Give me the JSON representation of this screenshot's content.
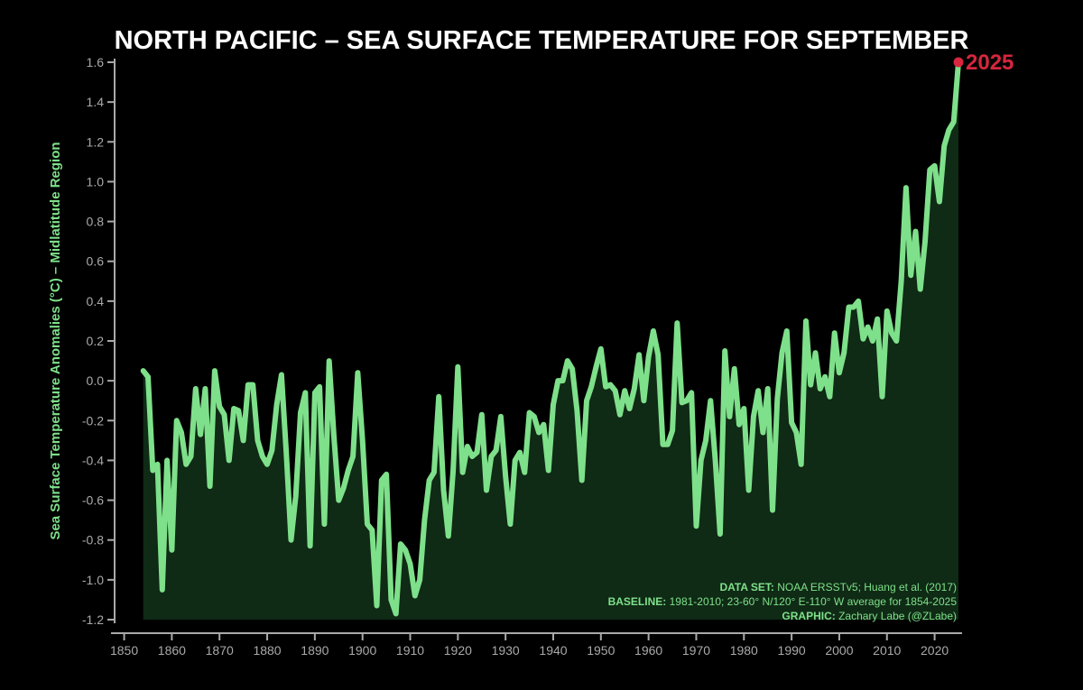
{
  "chart_data": {
    "type": "area",
    "title": "NORTH PACIFIC – SEA SURFACE TEMPERATURE FOR SEPTEMBER",
    "ylabel": "Sea Surface Temperature Anomalies (°C) – Midlatitude Region",
    "xlabel": "",
    "xlim": [
      1848,
      2025
    ],
    "ylim": [
      -1.2,
      1.6
    ],
    "x_ticks": [
      1850,
      1860,
      1870,
      1880,
      1890,
      1900,
      1910,
      1920,
      1930,
      1940,
      1950,
      1960,
      1970,
      1980,
      1990,
      2000,
      2010,
      2020
    ],
    "y_ticks": [
      "1.6",
      "1.4",
      "1.2",
      "1.0",
      "0.8",
      "0.6",
      "0.4",
      "0.2",
      "0.0",
      "-0.2",
      "-0.4",
      "-0.6",
      "-0.8",
      "-1.0",
      "-1.2"
    ],
    "grid": false,
    "highlight": {
      "x": 2025,
      "y": 1.6,
      "label": "2025",
      "color": "#d7263d"
    },
    "line_color": "#7ee08a",
    "fill_color": "#0f2a15",
    "background": "#000000",
    "annotations": [
      {
        "label": "DATA SET:",
        "text": "NOAA ERSSTv5; Huang et al. (2017)"
      },
      {
        "label": "BASELINE:",
        "text": "1981-2010; 23-60° N/120° E-110° W average for 1854-2025"
      },
      {
        "label": "GRAPHIC:",
        "text": "Zachary Labe (@ZLabe)"
      }
    ],
    "series": [
      {
        "x": [
          1854,
          1855,
          1856,
          1857,
          1858,
          1859,
          1860,
          1861,
          1862,
          1863,
          1864,
          1865,
          1866,
          1867,
          1868,
          1869,
          1870,
          1871,
          1872,
          1873,
          1874,
          1875,
          1876,
          1877,
          1878,
          1879,
          1880,
          1881,
          1882,
          1883,
          1884,
          1885,
          1886,
          1887,
          1888,
          1889,
          1890,
          1891,
          1892,
          1893,
          1894,
          1895,
          1896,
          1897,
          1898,
          1899,
          1900,
          1901,
          1902,
          1903,
          1904,
          1905,
          1906,
          1907,
          1908,
          1909,
          1910,
          1911,
          1912,
          1913,
          1914,
          1915,
          1916,
          1917,
          1918,
          1919,
          1920,
          1921,
          1922,
          1923,
          1924,
          1925,
          1926,
          1927,
          1928,
          1929,
          1930,
          1931,
          1932,
          1933,
          1934,
          1935,
          1936,
          1937,
          1938,
          1939,
          1940,
          1941,
          1942,
          1943,
          1944,
          1945,
          1946,
          1947,
          1948,
          1949,
          1950,
          1951,
          1952,
          1953,
          1954,
          1955,
          1956,
          1957,
          1958,
          1959,
          1960,
          1961,
          1962,
          1963,
          1964,
          1965,
          1966,
          1967,
          1968,
          1969,
          1970,
          1971,
          1972,
          1973,
          1974,
          1975,
          1976,
          1977,
          1978,
          1979,
          1980,
          1981,
          1982,
          1983,
          1984,
          1985,
          1986,
          1987,
          1988,
          1989,
          1990,
          1991,
          1992,
          1993,
          1994,
          1995,
          1996,
          1997,
          1998,
          1999,
          2000,
          2001,
          2002,
          2003,
          2004,
          2005,
          2006,
          2007,
          2008,
          2009,
          2010,
          2011,
          2012,
          2013,
          2014,
          2015,
          2016,
          2017,
          2018,
          2019,
          2020,
          2021,
          2022,
          2023,
          2024,
          2025
        ],
        "values": [
          0.05,
          0.02,
          -0.45,
          -0.42,
          -1.05,
          -0.4,
          -0.85,
          -0.2,
          -0.26,
          -0.42,
          -0.38,
          -0.04,
          -0.27,
          -0.04,
          -0.53,
          0.05,
          -0.13,
          -0.17,
          -0.4,
          -0.14,
          -0.15,
          -0.3,
          -0.02,
          -0.02,
          -0.3,
          -0.38,
          -0.42,
          -0.35,
          -0.12,
          0.03,
          -0.36,
          -0.8,
          -0.58,
          -0.16,
          -0.06,
          -0.83,
          -0.06,
          -0.03,
          -0.72,
          0.1,
          -0.28,
          -0.6,
          -0.54,
          -0.45,
          -0.38,
          0.04,
          -0.3,
          -0.72,
          -0.75,
          -1.13,
          -0.5,
          -0.47,
          -1.1,
          -1.17,
          -0.82,
          -0.85,
          -0.92,
          -1.08,
          -1.0,
          -0.7,
          -0.5,
          -0.46,
          -0.08,
          -0.55,
          -0.78,
          -0.45,
          0.07,
          -0.46,
          -0.33,
          -0.38,
          -0.36,
          -0.17,
          -0.55,
          -0.38,
          -0.35,
          -0.18,
          -0.48,
          -0.72,
          -0.4,
          -0.36,
          -0.46,
          -0.16,
          -0.18,
          -0.26,
          -0.22,
          -0.45,
          -0.12,
          0.0,
          0.0,
          0.1,
          0.06,
          -0.15,
          -0.5,
          -0.1,
          -0.03,
          0.07,
          0.16,
          -0.03,
          -0.02,
          -0.05,
          -0.17,
          -0.05,
          -0.14,
          -0.04,
          0.13,
          -0.1,
          0.12,
          0.25,
          0.13,
          -0.32,
          -0.32,
          -0.25,
          0.29,
          -0.11,
          -0.1,
          -0.06,
          -0.73,
          -0.4,
          -0.3,
          -0.1,
          -0.4,
          -0.77,
          0.15,
          -0.18,
          0.06,
          -0.22,
          -0.14,
          -0.55,
          -0.18,
          -0.05,
          -0.26,
          -0.04,
          -0.65,
          -0.09,
          0.14,
          0.25,
          -0.21,
          -0.26,
          -0.42,
          0.3,
          -0.02,
          0.14,
          -0.04,
          0.02,
          -0.08,
          0.24,
          0.04,
          0.14,
          0.37,
          0.37,
          0.4,
          0.21,
          0.27,
          0.2,
          0.31,
          -0.08,
          0.35,
          0.24,
          0.2,
          0.5,
          0.97,
          0.53,
          0.75,
          0.46,
          0.7,
          1.06,
          1.08,
          0.9,
          1.18,
          1.26,
          1.3,
          1.6
        ]
      }
    ]
  }
}
